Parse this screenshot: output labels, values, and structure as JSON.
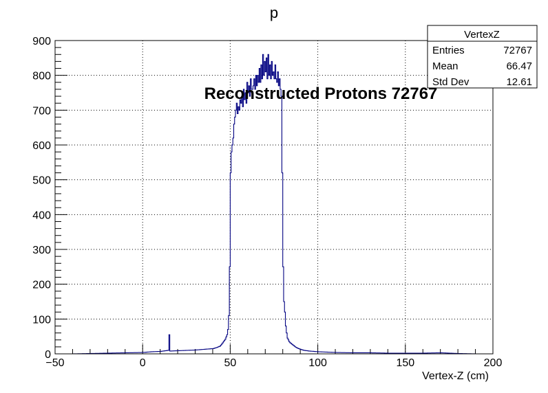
{
  "chart_data": {
    "type": "histogram",
    "title": "p",
    "xlabel": "Vertex-Z (cm)",
    "ylabel": "",
    "xlim": [
      -50,
      200
    ],
    "ylim": [
      0,
      900
    ],
    "grid": true,
    "line_color": "#000080",
    "x_ticks": [
      -50,
      0,
      50,
      100,
      150,
      200
    ],
    "x_tick_labels": [
      "−50",
      "0",
      "50",
      "100",
      "150",
      "200"
    ],
    "y_ticks": [
      0,
      100,
      200,
      300,
      400,
      500,
      600,
      700,
      800,
      900
    ],
    "y_tick_labels": [
      "0",
      "100",
      "200",
      "300",
      "400",
      "500",
      "600",
      "700",
      "800",
      "900"
    ],
    "annotation": "Reconstructed Protons 72767",
    "stats_box": {
      "name": "VertexZ",
      "rows": [
        {
          "label": "Entries",
          "value": "72767"
        },
        {
          "label": "Mean",
          "value": "66.47"
        },
        {
          "label": "Std Dev",
          "value": "12.61"
        }
      ]
    },
    "series": [
      {
        "bin_width": 0.5,
        "x": [
          -50,
          -40,
          -30,
          -20,
          -10,
          0,
          5,
          10,
          14.5,
          15,
          15.5,
          20,
          25,
          30,
          35,
          40,
          42,
          44,
          45,
          46,
          47,
          48,
          48.5,
          49,
          49.5,
          50,
          50.5,
          51,
          51.5,
          52,
          52.5,
          53,
          53.5,
          54,
          54.5,
          55,
          55.5,
          56,
          56.5,
          57,
          57.5,
          58,
          58.5,
          59,
          59.5,
          60,
          60.5,
          61,
          61.5,
          62,
          62.5,
          63,
          63.5,
          64,
          64.5,
          65,
          65.5,
          66,
          66.5,
          67,
          67.5,
          68,
          68.5,
          69,
          69.5,
          70,
          70.5,
          71,
          71.5,
          72,
          72.5,
          73,
          73.5,
          74,
          74.5,
          75,
          75.5,
          76,
          76.5,
          77,
          77.5,
          78,
          78.5,
          79,
          79.5,
          80,
          80.5,
          81,
          81.5,
          82,
          82.5,
          83,
          83.5,
          84,
          84.5,
          85,
          86,
          87,
          88,
          89,
          90,
          92,
          95,
          100,
          110,
          120,
          130,
          140,
          150,
          160,
          170,
          180,
          190,
          199.5
        ],
        "y": [
          0,
          0,
          1,
          2,
          3,
          4,
          6,
          7,
          10,
          55,
          8,
          9,
          10,
          11,
          13,
          15,
          18,
          22,
          28,
          35,
          42,
          55,
          70,
          110,
          250,
          520,
          580,
          600,
          620,
          660,
          680,
          700,
          720,
          690,
          710,
          700,
          730,
          720,
          740,
          710,
          760,
          730,
          750,
          720,
          780,
          750,
          770,
          740,
          790,
          760,
          760,
          770,
          790,
          760,
          800,
          770,
          800,
          780,
          820,
          780,
          830,
          790,
          860,
          800,
          840,
          810,
          850,
          790,
          860,
          800,
          830,
          790,
          840,
          800,
          810,
          790,
          830,
          790,
          780,
          810,
          770,
          790,
          760,
          740,
          520,
          250,
          150,
          120,
          80,
          60,
          45,
          40,
          35,
          32,
          30,
          28,
          24,
          20,
          17,
          15,
          13,
          10,
          8,
          6,
          4,
          3,
          3,
          2,
          2,
          2,
          3,
          1,
          0,
          0
        ]
      }
    ]
  }
}
